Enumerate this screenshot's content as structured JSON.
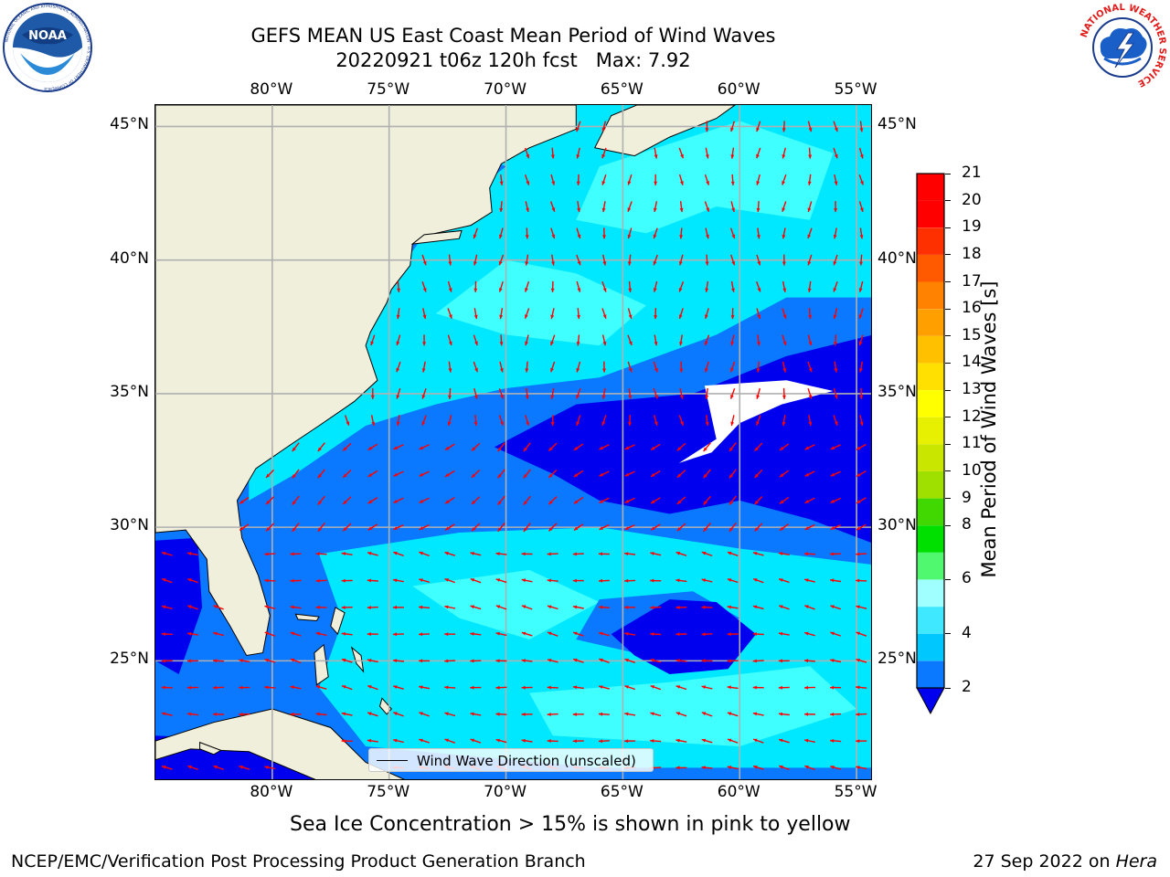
{
  "header": {
    "title_line1": "GEFS MEAN US East Coast Mean Period of Wind Waves",
    "title_line2": "20220921 t06z 120h fcst   Max: 7.92"
  },
  "logos": {
    "left": {
      "name": "NOAA",
      "ring_text": "NATIONAL OCEANIC AND ATMOSPHERIC ADMINISTRATION · U.S. DEPARTMENT OF COMMERCE"
    },
    "right": {
      "name": "National Weather Service",
      "ring_text": "NATIONAL WEATHER SERVICE"
    }
  },
  "map": {
    "projection": "cylindrical",
    "lon_range": [
      -85,
      -54.3
    ],
    "lat_range": [
      20.5,
      45.8
    ],
    "lon_ticks": [
      "80°W",
      "75°W",
      "70°W",
      "65°W",
      "60°W",
      "55°W"
    ],
    "lat_ticks": [
      "45°N",
      "40°N",
      "35°N",
      "30°N",
      "25°N"
    ],
    "gridlines": true,
    "land_color": "#efefdc",
    "missing_color": "#ffffff",
    "arrow_color": "#ff0000",
    "legend_label": "Wind Wave Direction (unscaled)",
    "legend_placement": "bottom-center"
  },
  "colorbar": {
    "label": "Mean Period of Wind Waves [s]",
    "levels": [
      2,
      3,
      4,
      5,
      6,
      7,
      8,
      9,
      10,
      11,
      12,
      13,
      14,
      15,
      16,
      17,
      18,
      19,
      20,
      21
    ],
    "colors": [
      "#0a78ff",
      "#00c8ff",
      "#40e8ff",
      "#a0ffff",
      "#50f870",
      "#00e000",
      "#40d800",
      "#a0e000",
      "#c8e600",
      "#e6f000",
      "#ffff00",
      "#ffe000",
      "#ffc000",
      "#ffa000",
      "#ff8200",
      "#ff5a00",
      "#ff3000",
      "#ff0000",
      "#ff0000"
    ],
    "under_color": "#0000ee",
    "tick_labels": [
      "2",
      "4",
      "6",
      "8",
      "9",
      "10",
      "11",
      "12",
      "13",
      "14",
      "15",
      "16",
      "17",
      "18",
      "19",
      "20",
      "21"
    ]
  },
  "period_colors": {
    "lt2": "#0000ee",
    "c2_4": "#0a78ff",
    "c4_6": "#00e8ff",
    "c6_8": "#40ffff",
    "c8_9": "#a0ffff"
  },
  "footer": {
    "note": "Sea Ice Concentration > 15% is shown in pink to yellow",
    "credit": "NCEP/EMC/Verification Post Processing Product Generation Branch",
    "date": "27 Sep 2022 on ",
    "machine": "Hera"
  }
}
